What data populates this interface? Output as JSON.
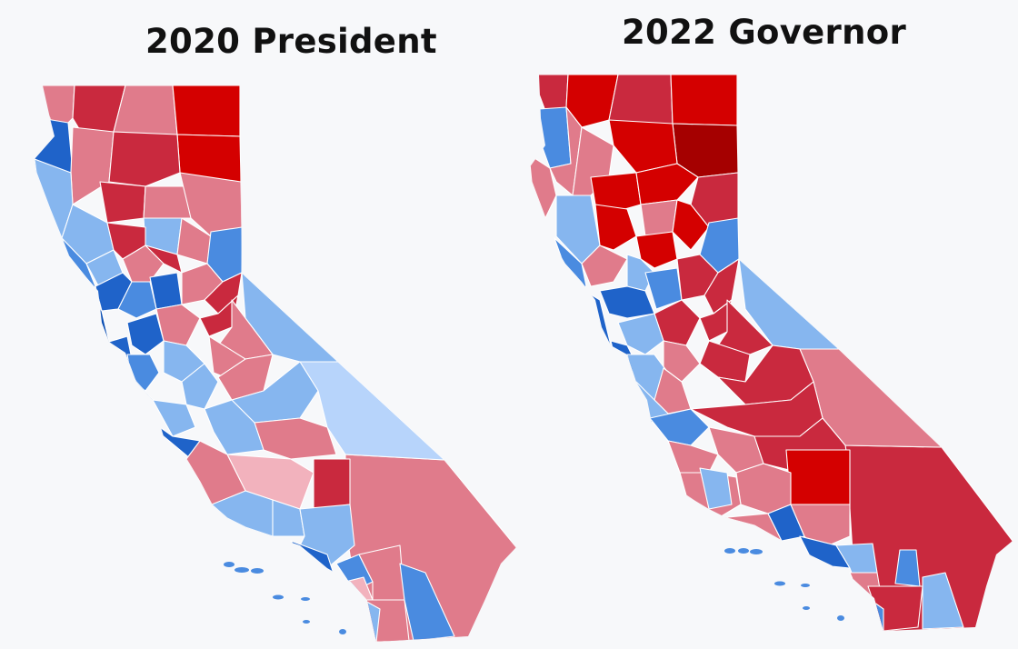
{
  "maps": [
    {
      "title": "2020 President",
      "colors": {
        "safe_r": "#d40000",
        "likely_r": "#c9293e",
        "lean_r": "#e07b8b",
        "tilt_r": "#f2b2bd",
        "tilt_d": "#b7d4fb",
        "lean_d": "#86b6ef",
        "likely_d": "#4a8be0",
        "safe_d": "#1f63c9",
        "solid_d": "#0c4fb3"
      }
    },
    {
      "title": "2022 Governor",
      "colors": {
        "solid_r": "#a50000",
        "safe_r": "#d40000",
        "likely_r": "#c9293e",
        "lean_r": "#e07b8b",
        "lean_d": "#86b6ef",
        "likely_d": "#4a8be0",
        "safe_d": "#1f63c9"
      }
    }
  ]
}
